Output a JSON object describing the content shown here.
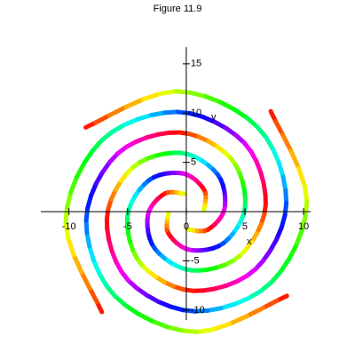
{
  "chart_data": {
    "type": "line",
    "title": "Figure 11.9",
    "x_label": "x",
    "y_label": "y",
    "colormap": "hsv",
    "xlim": [
      -12.4,
      10.6
    ],
    "ylim": [
      -11,
      16.7
    ],
    "xticks": [
      -10,
      -5,
      0,
      5,
      10
    ],
    "yticks": [
      -10,
      -5,
      5,
      10,
      15
    ],
    "series": [
      {
        "x": [
          -8.58,
          -0.9,
          6.07,
          8.53,
          5.88,
          0.59,
          -3.81,
          -5.02,
          -3.19,
          -0.29,
          1.54,
          1.51
        ],
        "y": [
          8.55,
          12.21,
          8.59,
          0.88,
          -5.86,
          -8.04,
          -5.39,
          -0.52,
          3.18,
          3.88,
          2.18,
          0.16
        ]
      },
      {
        "x": [
          7.2,
          10.28,
          7.23,
          0.74,
          -4.94,
          -6.77,
          -4.53,
          -0.44,
          2.67,
          3.27,
          1.84,
          0.13
        ],
        "y": [
          10.19,
          1.07,
          -7.21,
          -10.12,
          -6.99,
          -0.7,
          4.52,
          5.96,
          3.78,
          0.34,
          -1.83,
          -1.8
        ]
      },
      {
        "x": [
          8.58,
          0.9,
          -6.07,
          -8.53,
          -5.88,
          -0.59,
          3.81,
          5.02,
          3.19,
          0.29,
          -1.54,
          -1.51
        ],
        "y": [
          -8.55,
          -12.21,
          -8.59,
          -0.88,
          5.86,
          8.04,
          5.39,
          0.52,
          -3.18,
          -3.88,
          -2.18,
          -0.16
        ]
      },
      {
        "x": [
          -7.2,
          -10.28,
          -7.23,
          -0.74,
          4.94,
          6.77,
          4.53,
          0.44,
          -2.67,
          -3.27,
          -1.84,
          -0.13
        ],
        "y": [
          -10.19,
          -1.07,
          7.21,
          10.12,
          6.99,
          0.7,
          -4.52,
          -5.96,
          -3.78,
          -0.34,
          1.83,
          1.8
        ]
      }
    ]
  }
}
